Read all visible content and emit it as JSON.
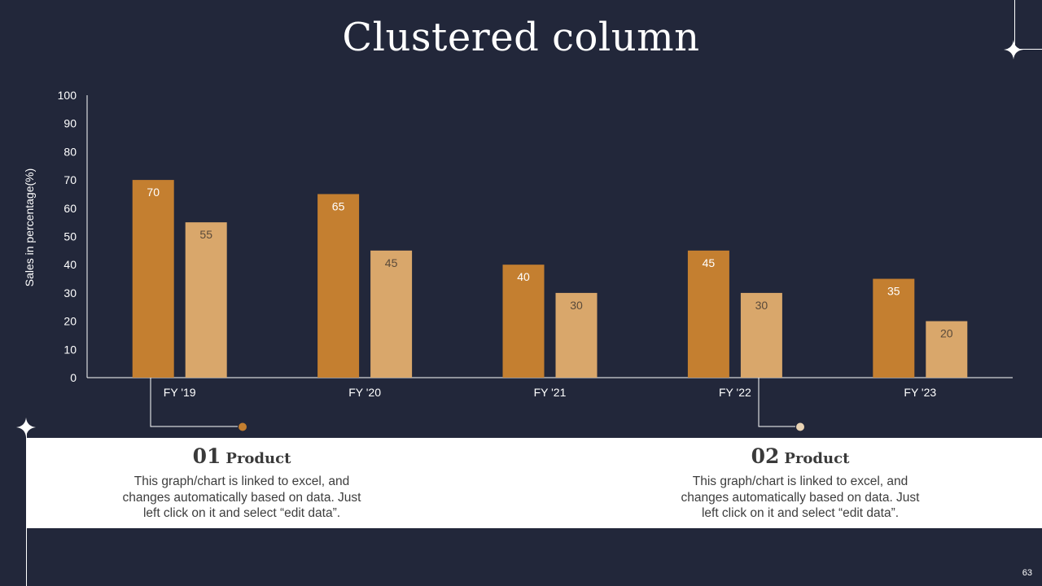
{
  "slide": {
    "title": "Clustered column",
    "page_number": "63"
  },
  "chart_data": {
    "type": "bar",
    "categories": [
      "FY '19",
      "FY '20",
      "FY '21",
      "FY '22",
      "FY '23"
    ],
    "series": [
      {
        "values": [
          70,
          65,
          40,
          45,
          35
        ],
        "color": "#c47f30",
        "label_color": "#ffffff"
      },
      {
        "values": [
          55,
          45,
          30,
          30,
          20
        ],
        "color": "#d9a76b",
        "label_color": "#5a4a3a"
      }
    ],
    "ylabel": "Sales in percentage(%)",
    "ylim": [
      0,
      100
    ],
    "yticks": [
      0,
      10,
      20,
      30,
      40,
      50,
      60,
      70,
      80,
      90,
      100
    ],
    "grid": false,
    "data_labels": true
  },
  "cards": [
    {
      "number": "01",
      "label": "Product",
      "marker_color": "#c47f30",
      "lines": [
        "This graph/chart is linked to excel, and",
        "changes automatically based on data. Just",
        "left click on it and select “edit data”."
      ]
    },
    {
      "number": "02",
      "label": "Product",
      "marker_color": "#e9d3b4",
      "lines": [
        "This graph/chart is linked to excel, and",
        "changes automatically based on data. Just",
        "left click on it and select “edit data”."
      ]
    }
  ],
  "colors": {
    "background": "#22273a",
    "axis": "#ffffff"
  }
}
